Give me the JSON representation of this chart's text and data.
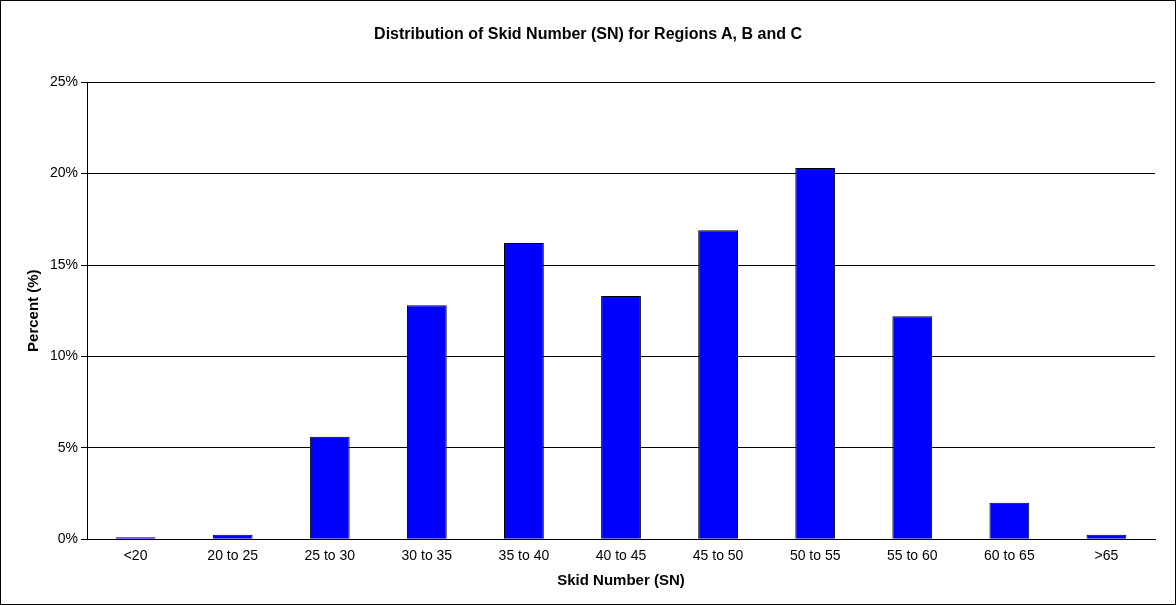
{
  "chart_data": {
    "type": "bar",
    "title": "Distribution of Skid Number (SN) for Regions A, B and C",
    "xlabel": "Skid Number (SN)",
    "ylabel": "Percent (%)",
    "categories": [
      "<20",
      "20 to 25",
      "25 to 30",
      "30 to 35",
      "35 to 40",
      "40 to 45",
      "45 to 50",
      "50 to 55",
      "55 to 60",
      "60 to 65",
      ">65"
    ],
    "values": [
      0.1,
      0.25,
      5.6,
      12.8,
      16.2,
      13.3,
      16.9,
      20.3,
      12.2,
      2.0,
      0.25
    ],
    "color": "#0000ff",
    "ylim": [
      0,
      25
    ],
    "yticks": [
      {
        "value": 0,
        "label": "0%"
      },
      {
        "value": 5,
        "label": "5%"
      },
      {
        "value": 10,
        "label": "10%"
      },
      {
        "value": 15,
        "label": "15%"
      },
      {
        "value": 20,
        "label": "20%"
      },
      {
        "value": 25,
        "label": "25%"
      }
    ],
    "grid": "y"
  }
}
